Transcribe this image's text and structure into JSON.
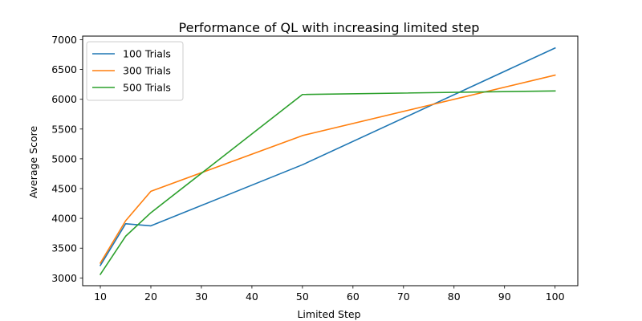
{
  "chart_data": {
    "type": "line",
    "title": "Performance of QL with increasing limited step",
    "xlabel": "Limited Step",
    "ylabel": "Average Score",
    "x": [
      10,
      15,
      20,
      50,
      100
    ],
    "xlim": [
      6.5,
      104.5
    ],
    "ylim": [
      2870,
      7060
    ],
    "xticks": [
      10,
      20,
      30,
      40,
      50,
      60,
      70,
      80,
      90,
      100
    ],
    "yticks": [
      3000,
      3500,
      4000,
      4500,
      5000,
      5500,
      6000,
      6500,
      7000
    ],
    "grid": false,
    "legend_position": "upper-left",
    "series": [
      {
        "name": "100 Trials",
        "color": "#1f77b4",
        "values": [
          3210,
          3910,
          3875,
          4900,
          6860
        ]
      },
      {
        "name": "300 Trials",
        "color": "#ff7f0e",
        "values": [
          3250,
          3960,
          4455,
          5390,
          6405
        ]
      },
      {
        "name": "500 Trials",
        "color": "#2ca02c",
        "values": [
          3060,
          3700,
          4095,
          6080,
          6140
        ]
      }
    ]
  }
}
